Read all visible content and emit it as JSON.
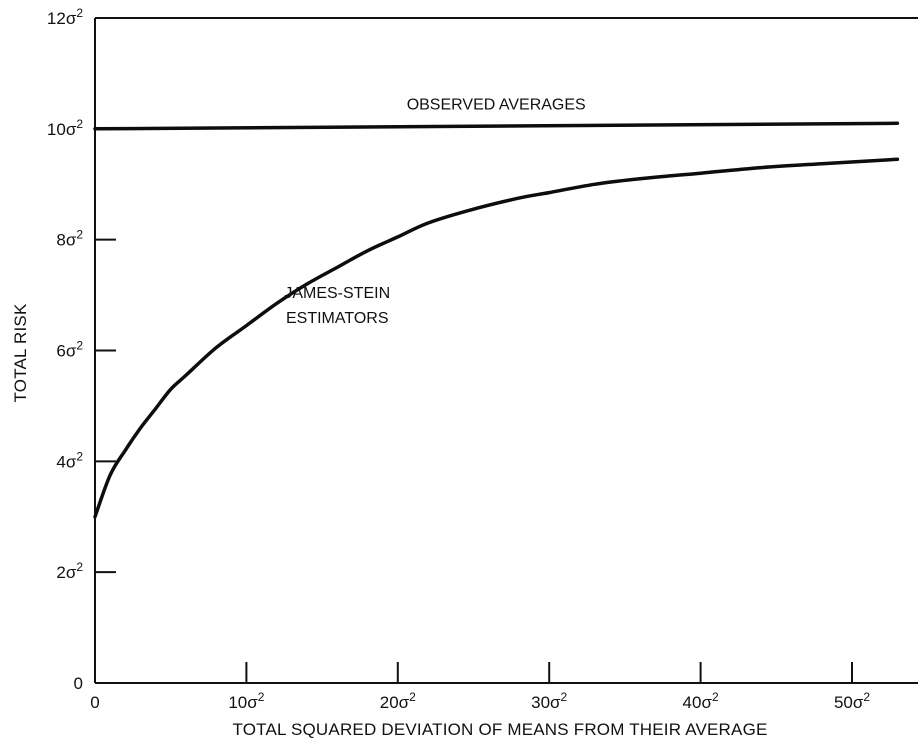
{
  "chart_data": {
    "type": "line",
    "title": "",
    "xlabel": "TOTAL SQUARED DEVIATION OF MEANS FROM THEIR AVERAGE",
    "ylabel": "TOTAL RISK",
    "xlim": [
      0,
      53
    ],
    "ylim": [
      0,
      12
    ],
    "grid": false,
    "legend": "none",
    "x_ticks": [
      {
        "value": 0,
        "label": "0",
        "sup": ""
      },
      {
        "value": 10,
        "label": "10σ",
        "sup": "2"
      },
      {
        "value": 20,
        "label": "20σ",
        "sup": "2"
      },
      {
        "value": 30,
        "label": "30σ",
        "sup": "2"
      },
      {
        "value": 40,
        "label": "40σ",
        "sup": "2"
      },
      {
        "value": 50,
        "label": "50σ",
        "sup": "2"
      }
    ],
    "y_ticks": [
      {
        "value": 0,
        "label": "0",
        "sup": ""
      },
      {
        "value": 2,
        "label": "2σ",
        "sup": "2"
      },
      {
        "value": 4,
        "label": "4σ",
        "sup": "2"
      },
      {
        "value": 6,
        "label": "6σ",
        "sup": "2"
      },
      {
        "value": 8,
        "label": "8σ",
        "sup": "2"
      },
      {
        "value": 10,
        "label": "10σ",
        "sup": "2"
      },
      {
        "value": 12,
        "label": "12σ",
        "sup": "2"
      }
    ],
    "series": [
      {
        "name": "OBSERVED AVERAGES",
        "x": [
          0,
          53
        ],
        "y": [
          10,
          10.1
        ]
      },
      {
        "name": "JAMES-STEIN ESTIMATORS",
        "x": [
          0,
          1,
          2,
          3,
          4,
          5,
          6,
          8,
          10,
          12,
          14,
          16,
          18,
          20,
          22,
          25,
          28,
          30,
          33,
          36,
          40,
          44,
          48,
          53
        ],
        "y": [
          3.0,
          3.75,
          4.2,
          4.6,
          4.95,
          5.3,
          5.55,
          6.05,
          6.45,
          6.85,
          7.2,
          7.5,
          7.8,
          8.05,
          8.3,
          8.55,
          8.75,
          8.85,
          9.0,
          9.1,
          9.2,
          9.3,
          9.37,
          9.45
        ]
      }
    ],
    "annotations": [
      {
        "text": "OBSERVED AVERAGES",
        "x": 26.5,
        "y": 10.35
      },
      {
        "text": "JAMES-STEIN",
        "x": 16,
        "y": 6.95
      },
      {
        "text": "ESTIMATORS",
        "x": 16,
        "y": 6.5
      }
    ],
    "colors": {
      "line": "#0d0d0d",
      "axis": "#111111",
      "background": "#ffffff"
    }
  }
}
